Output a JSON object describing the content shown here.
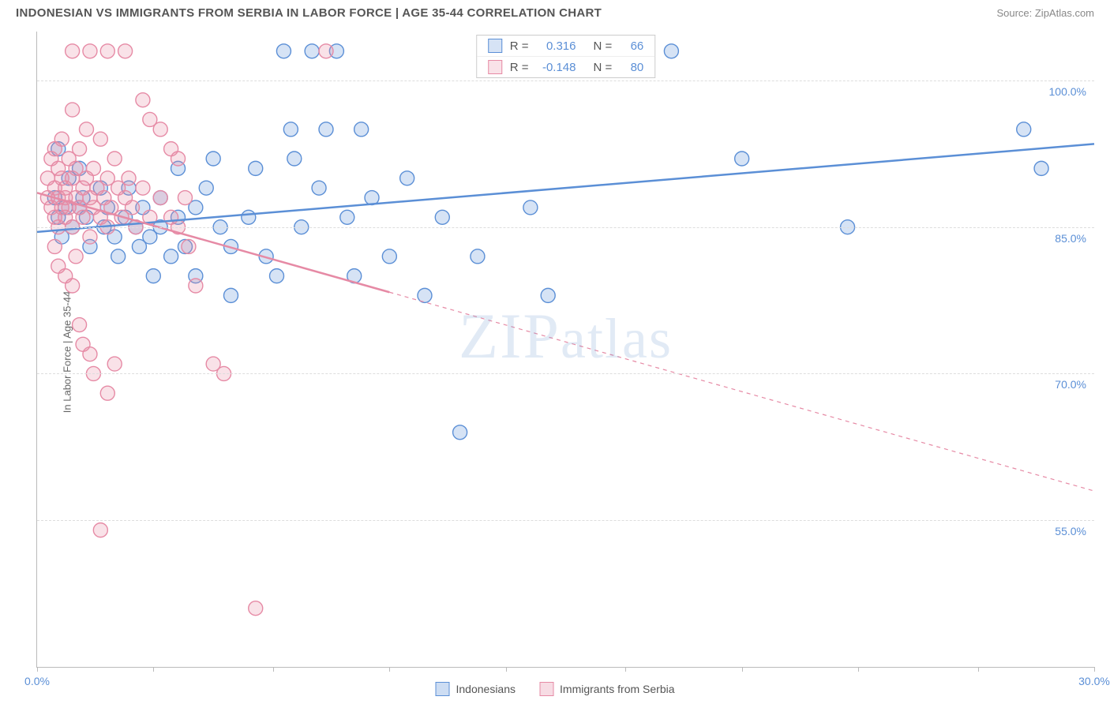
{
  "header": {
    "title": "INDONESIAN VS IMMIGRANTS FROM SERBIA IN LABOR FORCE | AGE 35-44 CORRELATION CHART",
    "source": "Source: ZipAtlas.com"
  },
  "chart": {
    "type": "scatter",
    "y_axis_label": "In Labor Force | Age 35-44",
    "background_color": "#ffffff",
    "grid_color": "#dddddd",
    "axis_color": "#bbbbbb",
    "ytick_color": "#5b8fd6",
    "xtick_color": "#5b8fd6",
    "xlim": [
      0,
      30
    ],
    "ylim": [
      40,
      105
    ],
    "yticks": [
      {
        "value": 55.0,
        "label": "55.0%"
      },
      {
        "value": 70.0,
        "label": "70.0%"
      },
      {
        "value": 85.0,
        "label": "85.0%"
      },
      {
        "value": 100.0,
        "label": "100.0%"
      }
    ],
    "xticks": [
      0,
      3.3,
      6.7,
      10,
      13.3,
      16.7,
      20,
      23.3,
      26.7,
      30
    ],
    "xtick_labels": {
      "0": "0.0%",
      "30": "30.0%"
    },
    "marker_radius": 9,
    "marker_fill_opacity": 0.25,
    "marker_stroke_width": 1.4,
    "line_width": 2.5,
    "watermark": "ZIPatlas"
  },
  "series": [
    {
      "name": "Indonesians",
      "color": "#5b8fd6",
      "fill": "rgba(91,143,214,0.25)",
      "stroke": "#5b8fd6",
      "stats": {
        "R": "0.316",
        "N": "66"
      },
      "trend": {
        "x1": 0,
        "y1": 84.5,
        "x2": 30,
        "y2": 93.5,
        "solid_until_x": 30
      },
      "points": [
        [
          0.5,
          88
        ],
        [
          0.6,
          86
        ],
        [
          0.8,
          87
        ],
        [
          0.9,
          90
        ],
        [
          0.6,
          93
        ],
        [
          0.7,
          84
        ],
        [
          1.0,
          85
        ],
        [
          1.2,
          87
        ],
        [
          1.2,
          91
        ],
        [
          1.3,
          88
        ],
        [
          1.4,
          86
        ],
        [
          1.5,
          83
        ],
        [
          1.8,
          89
        ],
        [
          1.9,
          85
        ],
        [
          2.0,
          87
        ],
        [
          2.2,
          84
        ],
        [
          2.3,
          82
        ],
        [
          2.5,
          86
        ],
        [
          2.6,
          89
        ],
        [
          2.8,
          85
        ],
        [
          2.9,
          83
        ],
        [
          3.0,
          87
        ],
        [
          3.2,
          84
        ],
        [
          3.3,
          80
        ],
        [
          3.5,
          88
        ],
        [
          3.5,
          85
        ],
        [
          3.8,
          82
        ],
        [
          4.0,
          86
        ],
        [
          4.0,
          91
        ],
        [
          4.2,
          83
        ],
        [
          4.5,
          87
        ],
        [
          4.5,
          80
        ],
        [
          4.8,
          89
        ],
        [
          5.0,
          92
        ],
        [
          5.2,
          85
        ],
        [
          5.5,
          83
        ],
        [
          5.5,
          78
        ],
        [
          6.0,
          86
        ],
        [
          6.2,
          91
        ],
        [
          6.5,
          82
        ],
        [
          6.8,
          80
        ],
        [
          7.0,
          103
        ],
        [
          7.2,
          95
        ],
        [
          7.3,
          92
        ],
        [
          7.5,
          85
        ],
        [
          7.8,
          103
        ],
        [
          8.0,
          89
        ],
        [
          8.2,
          95
        ],
        [
          8.5,
          103
        ],
        [
          8.8,
          86
        ],
        [
          9.0,
          80
        ],
        [
          9.2,
          95
        ],
        [
          9.5,
          88
        ],
        [
          10.0,
          82
        ],
        [
          10.5,
          90
        ],
        [
          11.0,
          78
        ],
        [
          11.5,
          86
        ],
        [
          12.0,
          64
        ],
        [
          12.5,
          82
        ],
        [
          14.0,
          87
        ],
        [
          14.5,
          78
        ],
        [
          18.0,
          103
        ],
        [
          20.0,
          92
        ],
        [
          23.0,
          85
        ],
        [
          28.0,
          95
        ],
        [
          28.5,
          91
        ]
      ]
    },
    {
      "name": "Immigrants from Serbia",
      "color": "#e68aa5",
      "fill": "rgba(230,138,165,0.25)",
      "stroke": "#e68aa5",
      "stats": {
        "R": "-0.148",
        "N": "80"
      },
      "trend": {
        "x1": 0,
        "y1": 88.5,
        "x2": 30,
        "y2": 58,
        "solid_until_x": 10
      },
      "points": [
        [
          0.3,
          88
        ],
        [
          0.3,
          90
        ],
        [
          0.4,
          87
        ],
        [
          0.4,
          92
        ],
        [
          0.5,
          86
        ],
        [
          0.5,
          89
        ],
        [
          0.5,
          93
        ],
        [
          0.6,
          88
        ],
        [
          0.6,
          91
        ],
        [
          0.6,
          85
        ],
        [
          0.7,
          87
        ],
        [
          0.7,
          90
        ],
        [
          0.7,
          94
        ],
        [
          0.8,
          86
        ],
        [
          0.8,
          89
        ],
        [
          0.8,
          88
        ],
        [
          0.9,
          92
        ],
        [
          0.9,
          87
        ],
        [
          1.0,
          90
        ],
        [
          1.0,
          97
        ],
        [
          1.0,
          85
        ],
        [
          1.1,
          88
        ],
        [
          1.1,
          91
        ],
        [
          1.1,
          82
        ],
        [
          1.2,
          87
        ],
        [
          1.2,
          93
        ],
        [
          1.3,
          89
        ],
        [
          1.3,
          86
        ],
        [
          1.4,
          90
        ],
        [
          1.4,
          95
        ],
        [
          1.5,
          88
        ],
        [
          1.5,
          84
        ],
        [
          1.6,
          87
        ],
        [
          1.6,
          91
        ],
        [
          1.7,
          89
        ],
        [
          1.8,
          86
        ],
        [
          1.8,
          94
        ],
        [
          1.9,
          88
        ],
        [
          2.0,
          90
        ],
        [
          2.0,
          85
        ],
        [
          2.1,
          87
        ],
        [
          2.2,
          92
        ],
        [
          2.3,
          89
        ],
        [
          2.4,
          86
        ],
        [
          2.5,
          88
        ],
        [
          2.6,
          90
        ],
        [
          2.7,
          87
        ],
        [
          2.8,
          85
        ],
        [
          3.0,
          89
        ],
        [
          3.2,
          86
        ],
        [
          0.5,
          83
        ],
        [
          0.6,
          81
        ],
        [
          0.8,
          80
        ],
        [
          1.0,
          79
        ],
        [
          1.2,
          75
        ],
        [
          1.3,
          73
        ],
        [
          1.5,
          72
        ],
        [
          1.6,
          70
        ],
        [
          2.0,
          68
        ],
        [
          2.2,
          71
        ],
        [
          1.0,
          103
        ],
        [
          1.5,
          103
        ],
        [
          2.0,
          103
        ],
        [
          2.5,
          103
        ],
        [
          3.0,
          98
        ],
        [
          3.2,
          96
        ],
        [
          3.5,
          95
        ],
        [
          3.8,
          93
        ],
        [
          4.0,
          92
        ],
        [
          4.2,
          88
        ],
        [
          4.5,
          79
        ],
        [
          5.0,
          71
        ],
        [
          5.3,
          70
        ],
        [
          1.8,
          54
        ],
        [
          6.2,
          46
        ],
        [
          3.5,
          88
        ],
        [
          3.8,
          86
        ],
        [
          4.0,
          85
        ],
        [
          4.3,
          83
        ],
        [
          8.2,
          103
        ]
      ]
    }
  ],
  "legend_bottom": [
    {
      "label": "Indonesians",
      "color_fill": "rgba(91,143,214,0.3)",
      "color_stroke": "#5b8fd6"
    },
    {
      "label": "Immigrants from Serbia",
      "color_fill": "rgba(230,138,165,0.3)",
      "color_stroke": "#e68aa5"
    }
  ],
  "legend_top_labels": {
    "R": "R =",
    "N": "N ="
  }
}
